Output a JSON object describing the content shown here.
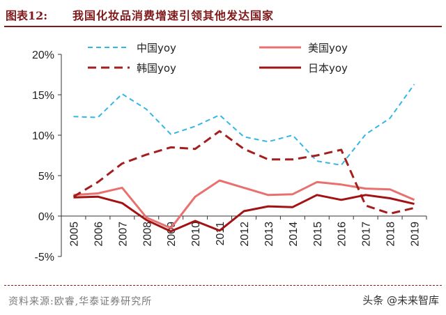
{
  "header": {
    "figure_label": "图表12:",
    "title": "我国化妆品消费增速引领其他发达国家"
  },
  "footer": {
    "source": "资料来源:欧睿,华泰证券研究所",
    "watermark": "头条 @未来智库"
  },
  "colors": {
    "brand": "#7f1a1a",
    "china": "#33b6e6",
    "usa": "#e8716f",
    "korea": "#a31e1e",
    "japan": "#a31212"
  },
  "chart_data": {
    "type": "line",
    "title": "我国化妆品消费增速引领其他发达国家",
    "xlabel": "",
    "ylabel": "",
    "x": [
      "2005",
      "2006",
      "2007",
      "2008",
      "2009",
      "2010",
      "2011",
      "2012",
      "2013",
      "2014",
      "2015",
      "2016",
      "2017",
      "2018",
      "2019"
    ],
    "ylim": [
      -5,
      20
    ],
    "yticks": [
      -5,
      0,
      5,
      10,
      15,
      20
    ],
    "ytick_labels": [
      "-5%",
      "0%",
      "5%",
      "10%",
      "15%",
      "20%"
    ],
    "legend_position": "top",
    "series": [
      {
        "name": "中国yoy",
        "color": "#33b6e6",
        "style": "dashed",
        "values": [
          12.3,
          12.2,
          15.1,
          13.2,
          10.1,
          11.1,
          12.5,
          9.8,
          9.2,
          10.0,
          6.8,
          6.3,
          10.1,
          12.1,
          16.3
        ]
      },
      {
        "name": "美国yoy",
        "color": "#e8716f",
        "style": "solid",
        "values": [
          2.6,
          2.8,
          3.5,
          -0.2,
          -1.5,
          2.4,
          4.4,
          3.5,
          2.6,
          2.7,
          4.2,
          3.9,
          3.4,
          3.3,
          2.0
        ]
      },
      {
        "name": "韩国yoy",
        "color": "#a31e1e",
        "style": "dashed",
        "values": [
          2.4,
          4.2,
          6.5,
          7.6,
          8.5,
          8.3,
          10.5,
          8.3,
          7.0,
          7.0,
          7.5,
          8.2,
          1.3,
          0.3,
          1.0
        ]
      },
      {
        "name": "日本yoy",
        "color": "#a31212",
        "style": "solid",
        "values": [
          2.3,
          2.4,
          1.6,
          -0.5,
          -1.9,
          -0.6,
          -1.8,
          0.6,
          1.2,
          1.1,
          2.6,
          2.0,
          2.6,
          2.2,
          1.5
        ]
      }
    ]
  }
}
